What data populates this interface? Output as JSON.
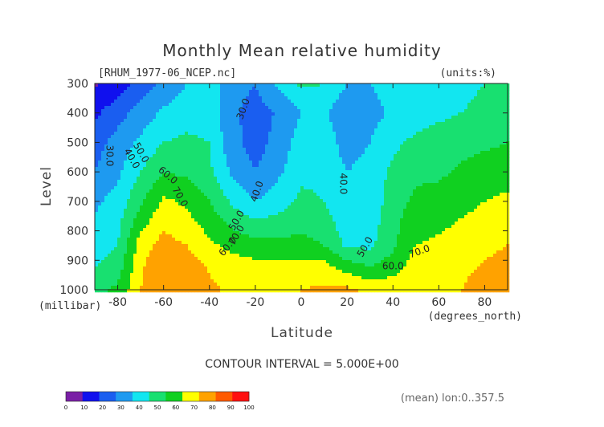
{
  "chart_data": {
    "type": "heatmap",
    "title": "Monthly Mean relative humidity",
    "dataset_label": "[RHUM_1977-06_NCEP.nc]",
    "units_label": "(units:%)",
    "xlabel": "Latitude",
    "x_unit_label": "(degrees_north)",
    "ylabel": "Level",
    "y_unit_label": "(millibar)",
    "xlim": [
      -90,
      90
    ],
    "ylim": [
      1000,
      300
    ],
    "x_ticks": [
      "-80",
      "-60",
      "-40",
      "-20",
      "0",
      "20",
      "40",
      "60",
      "80"
    ],
    "y_ticks": [
      "300",
      "400",
      "500",
      "600",
      "700",
      "800",
      "900",
      "1000"
    ],
    "contour_interval_text": "CONTOUR INTERVAL = 5.000E+00",
    "footer_text": "(mean) lon:0..357.5",
    "colorbar": {
      "ticks": [
        "0",
        "10",
        "20",
        "30",
        "40",
        "50",
        "60",
        "70",
        "80",
        "90",
        "100"
      ],
      "colors": [
        "#7a1fa6",
        "#1010ee",
        "#1a5ef0",
        "#1e9af0",
        "#12e6f0",
        "#18e070",
        "#10d020",
        "#ffff00",
        "#ffa200",
        "#ff5a00",
        "#ff1010"
      ]
    },
    "contour_labels": [
      "30.0",
      "40.0",
      "50.0",
      "60.0",
      "70.0",
      "30.0",
      "40.0",
      "50.0",
      "60.0",
      "70.0",
      "40.0",
      "50.0",
      "60.0",
      "70.0"
    ],
    "lats": [
      -90,
      -80,
      -70,
      -60,
      -50,
      -40,
      -30,
      -20,
      -10,
      0,
      10,
      20,
      30,
      40,
      50,
      60,
      70,
      80,
      90
    ],
    "levels": [
      1000,
      925,
      850,
      700,
      600,
      500,
      400,
      300
    ],
    "values": [
      [
        58,
        62,
        80,
        88,
        87,
        82,
        78,
        77,
        78,
        80,
        82,
        82,
        78,
        76,
        78,
        78,
        80,
        84,
        86
      ],
      [
        50,
        55,
        78,
        90,
        85,
        79,
        75,
        74,
        74,
        75,
        74,
        66,
        60,
        66,
        75,
        76,
        78,
        81,
        83
      ],
      [
        45,
        50,
        75,
        84,
        80,
        72,
        67,
        64,
        63,
        63,
        60,
        48,
        48,
        58,
        70,
        72,
        75,
        78,
        80
      ],
      [
        38,
        44,
        58,
        72,
        68,
        60,
        48,
        40,
        45,
        52,
        50,
        40,
        42,
        56,
        62,
        64,
        67,
        70,
        72
      ],
      [
        30,
        38,
        50,
        60,
        58,
        52,
        38,
        30,
        38,
        48,
        48,
        40,
        44,
        52,
        58,
        58,
        62,
        65,
        66
      ],
      [
        26,
        34,
        42,
        50,
        52,
        50,
        33,
        26,
        33,
        45,
        46,
        35,
        40,
        48,
        52,
        54,
        56,
        58,
        60
      ],
      [
        18,
        26,
        34,
        42,
        46,
        46,
        32,
        26,
        31,
        40,
        42,
        32,
        36,
        42,
        46,
        48,
        50,
        52,
        54
      ],
      [
        8,
        15,
        24,
        32,
        40,
        46,
        34,
        30,
        42,
        52,
        50,
        40,
        40,
        44,
        46,
        46,
        48,
        50,
        52
      ]
    ],
    "grid": false
  }
}
